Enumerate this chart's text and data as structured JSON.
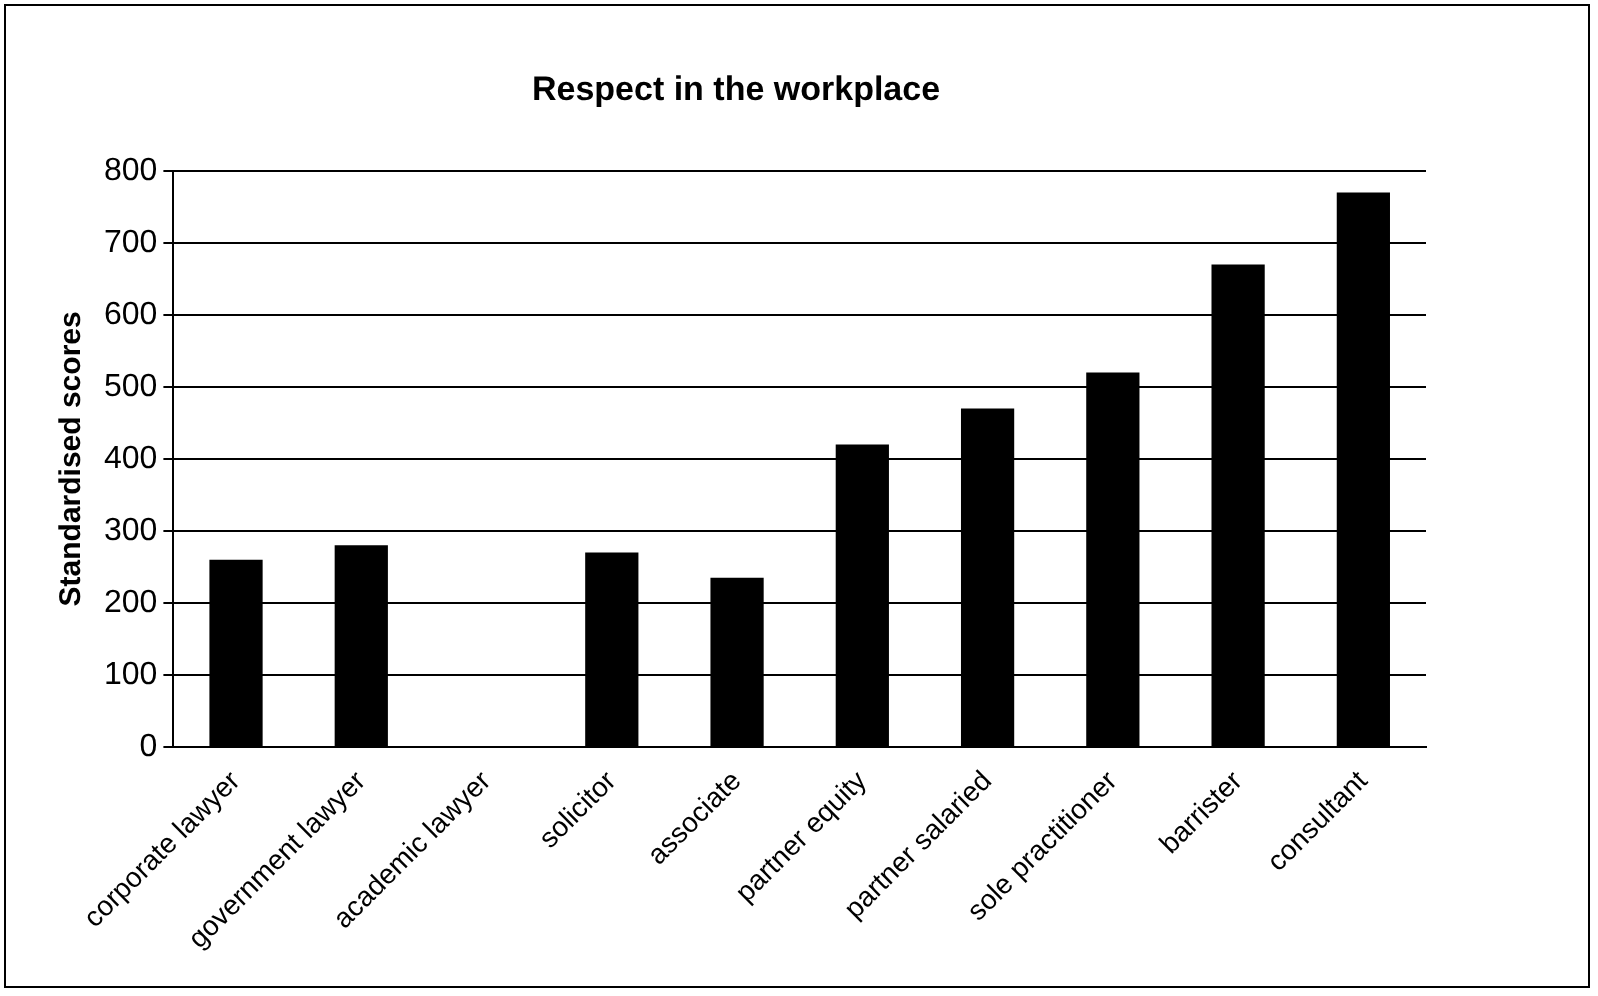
{
  "chart_data": {
    "type": "bar",
    "title": "Respect in the workplace",
    "ylabel": "Standardised scores",
    "categories": [
      "corporate lawyer",
      "government lawyer",
      "academic lawyer",
      "solicitor",
      "associate",
      "partner equity",
      "partner salaried",
      "sole practitioner",
      "barrister",
      "consultant"
    ],
    "values": [
      260,
      280,
      null,
      270,
      235,
      420,
      470,
      520,
      670,
      770
    ],
    "color": "#000000",
    "ylim": [
      0,
      800
    ],
    "yticks": [
      0,
      100,
      200,
      300,
      400,
      500,
      600,
      700,
      800
    ],
    "grid": "y"
  }
}
